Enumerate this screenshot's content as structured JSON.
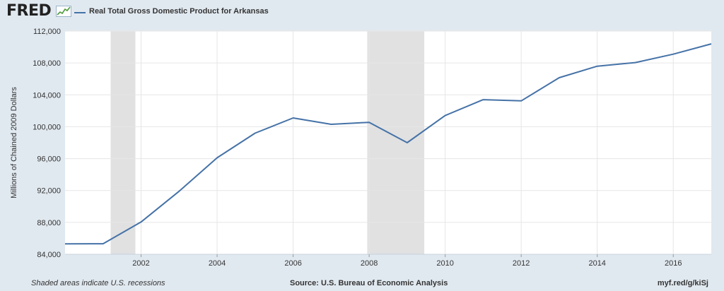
{
  "header": {
    "logo_text": "FRED",
    "logo_icon": "chart-trend-icon",
    "legend_label": "Real Total Gross Domestic Product for Arkansas"
  },
  "footer": {
    "left": "Shaded areas indicate U.S. recessions",
    "center": "Source: U.S. Bureau of Economic Analysis",
    "right": "myf.red/g/kiSj"
  },
  "chart_data": {
    "type": "line",
    "title": "",
    "xlabel": "",
    "ylabel": "Millions of Chained 2009 Dollars",
    "xlim": [
      2000,
      2017
    ],
    "ylim": [
      84000,
      112000
    ],
    "y_ticks": [
      84000,
      88000,
      92000,
      96000,
      100000,
      104000,
      108000,
      112000
    ],
    "y_tick_labels": [
      "84,000",
      "88,000",
      "92,000",
      "96,000",
      "100,000",
      "104,000",
      "108,000",
      "112,000"
    ],
    "x_ticks": [
      2002,
      2004,
      2006,
      2008,
      2010,
      2012,
      2014,
      2016
    ],
    "x_tick_labels": [
      "2002",
      "2004",
      "2006",
      "2008",
      "2010",
      "2012",
      "2014",
      "2016"
    ],
    "grid": true,
    "legend_position": "top-left",
    "color": "#4572a7",
    "recession_color": "#e1e1e1",
    "recessions": [
      [
        2001.2,
        2001.85
      ],
      [
        2007.95,
        2009.45
      ]
    ],
    "series": [
      {
        "name": "Real Total Gross Domestic Product for Arkansas",
        "x": [
          2000,
          2001,
          2002,
          2003,
          2004,
          2005,
          2006,
          2007,
          2008,
          2009,
          2010,
          2011,
          2012,
          2013,
          2014,
          2015,
          2016,
          2017
        ],
        "values": [
          85300,
          85320,
          88050,
          91900,
          96100,
          99200,
          101100,
          100300,
          100550,
          98000,
          101400,
          103400,
          103250,
          106150,
          107600,
          108050,
          109100,
          110400
        ]
      }
    ]
  }
}
